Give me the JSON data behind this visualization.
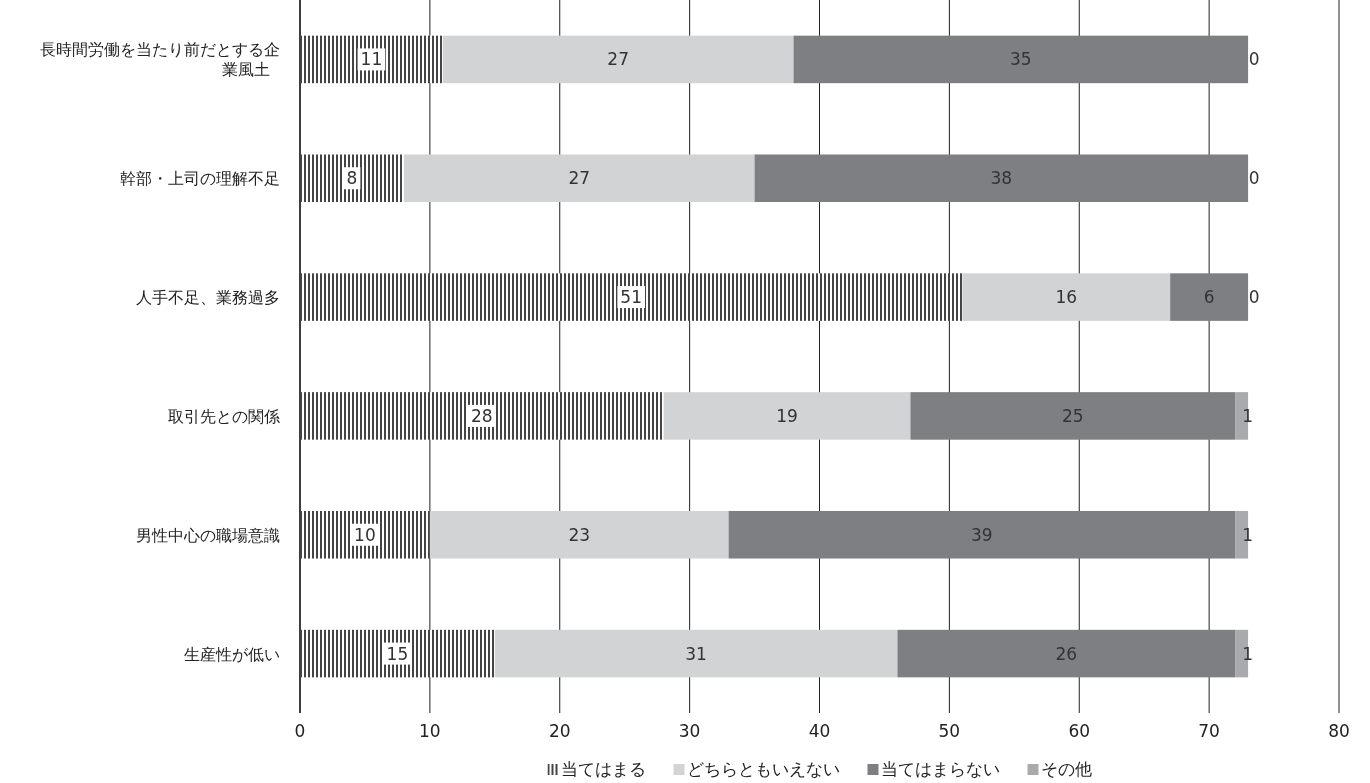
{
  "chart_data": {
    "type": "bar",
    "orientation": "horizontal",
    "stacked": true,
    "data_labels": true,
    "grid": "x",
    "legend": "bottom",
    "categories": [
      "長時間労働を当たり前だとする企業風土",
      "幹部・上司の理解不足",
      "人手不足、業務過多",
      "取引先との関係",
      "男性中心の職場意識",
      "生産性が低い"
    ],
    "series": [
      {
        "name": "当てはまる",
        "color": "#444444",
        "values": [
          11,
          8,
          51,
          28,
          10,
          15
        ]
      },
      {
        "name": "どちらともいえない",
        "color": "#d2d3d5",
        "values": [
          27,
          27,
          16,
          19,
          23,
          31
        ]
      },
      {
        "name": "当てはまらない",
        "color": "#7e7f82",
        "values": [
          35,
          38,
          6,
          25,
          39,
          26
        ]
      },
      {
        "name": "その他",
        "color": "#a9aaac",
        "values": [
          0,
          0,
          0,
          1,
          1,
          1
        ]
      }
    ],
    "xlim": [
      0,
      80
    ],
    "xticks": [
      0,
      10,
      20,
      30,
      40,
      50,
      60,
      70,
      80
    ]
  }
}
